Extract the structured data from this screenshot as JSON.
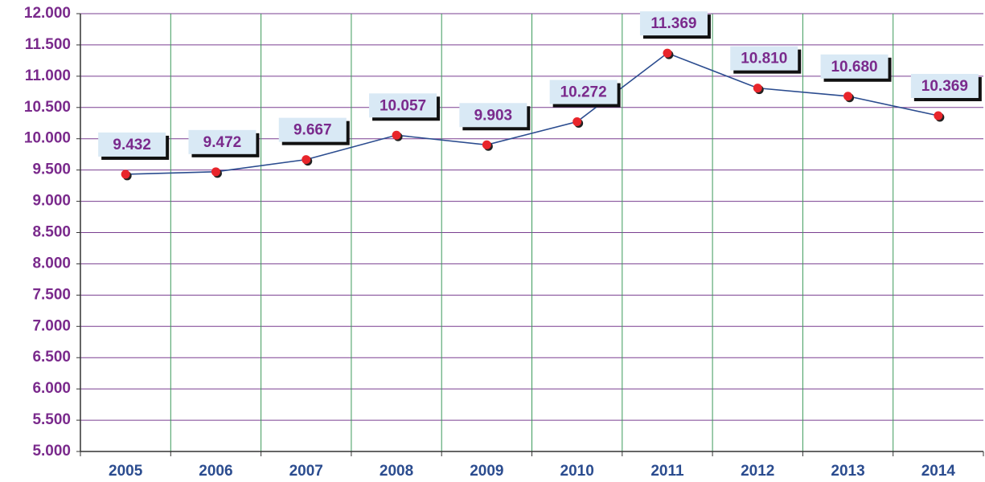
{
  "chart_data": {
    "type": "line",
    "categories": [
      "2005",
      "2006",
      "2007",
      "2008",
      "2009",
      "2010",
      "2011",
      "2012",
      "2013",
      "2014"
    ],
    "values": [
      9432,
      9472,
      9667,
      10057,
      9903,
      10272,
      11369,
      10810,
      10680,
      10369
    ],
    "value_labels": [
      "9.432",
      "9.472",
      "9.667",
      "10.057",
      "9.903",
      "10.272",
      "11.369",
      "10.810",
      "10.680",
      "10.369"
    ],
    "color": "#2b4c8f",
    "marker_color": "#e8252b",
    "ylim": [
      5000,
      12000
    ],
    "yticks": [
      {
        "value": 5000,
        "label": "5.000"
      },
      {
        "value": 5500,
        "label": "5.500"
      },
      {
        "value": 6000,
        "label": "6.000"
      },
      {
        "value": 6500,
        "label": "6.500"
      },
      {
        "value": 7000,
        "label": "7.000"
      },
      {
        "value": 7500,
        "label": "7.500"
      },
      {
        "value": 8000,
        "label": "8.000"
      },
      {
        "value": 8500,
        "label": "8.500"
      },
      {
        "value": 9000,
        "label": "9.000"
      },
      {
        "value": 9500,
        "label": "9.500"
      },
      {
        "value": 10000,
        "label": "10.000"
      },
      {
        "value": 10500,
        "label": "10.500"
      },
      {
        "value": 11000,
        "label": "11.000"
      },
      {
        "value": 11500,
        "label": "11.500"
      },
      {
        "value": 12000,
        "label": "12.000"
      }
    ],
    "grid": true
  }
}
